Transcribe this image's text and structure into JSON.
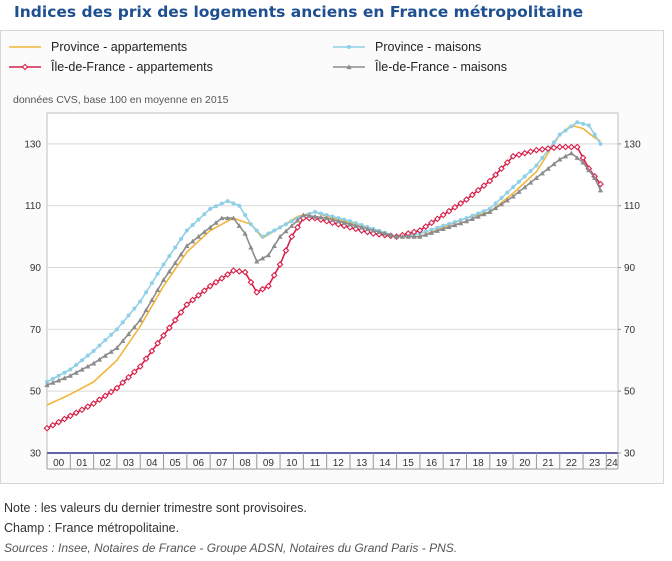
{
  "title": "Indices des prix des logements anciens en France métropolitaine",
  "notes": {
    "note": "Note : les valeurs du dernier trimestre sont provisoires.",
    "champ": "Champ : France métropolitaine.",
    "sources": "Sources : Insee, Notaires de France - Groupe ADSN, Notaires du Grand Paris - PNS."
  },
  "colors": {
    "province_apparts": "#f3b43a",
    "province_maisons": "#8fd0e8",
    "idf_apparts": "#d8204a",
    "idf_maisons": "#8c8c8c",
    "axis": "#2e3192",
    "grid": "#d9d9d9"
  },
  "chart_data": {
    "type": "line",
    "subtitle": "données CVS, base 100 en moyenne en 2015",
    "categories": [
      "00",
      "01",
      "02",
      "03",
      "04",
      "05",
      "06",
      "07",
      "08",
      "09",
      "10",
      "11",
      "12",
      "13",
      "14",
      "15",
      "16",
      "17",
      "18",
      "19",
      "20",
      "21",
      "22",
      "23",
      "24"
    ],
    "x_range": [
      2000,
      2024.5
    ],
    "ylim": [
      30,
      140
    ],
    "yticks": [
      30,
      50,
      70,
      90,
      110,
      130
    ],
    "grid": true,
    "legend_position": "top",
    "series": [
      {
        "name": "Province - appartements",
        "color_key": "province_apparts",
        "marker": "none",
        "x": [
          2000,
          2001,
          2002,
          2003,
          2004,
          2005,
          2006,
          2007,
          2008,
          2008.75,
          2009.25,
          2010,
          2010.75,
          2011.5,
          2012,
          2013,
          2014,
          2015,
          2016,
          2017,
          2018,
          2019,
          2020,
          2021,
          2022,
          2022.5,
          2023,
          2023.5,
          2023.75
        ],
        "y": [
          45.5,
          49,
          53,
          60,
          71,
          84,
          95,
          102,
          106,
          104,
          99.5,
          103,
          106.5,
          108,
          106.5,
          104.5,
          102.5,
          100,
          100,
          103,
          106,
          108,
          114,
          121,
          133,
          136,
          135,
          132,
          131
        ]
      },
      {
        "name": "Province - maisons",
        "color_key": "province_maisons",
        "marker": "circle",
        "x": [
          2000,
          2001,
          2002,
          2003,
          2004,
          2005,
          2006,
          2007,
          2007.75,
          2008.25,
          2008.75,
          2009.25,
          2010,
          2010.75,
          2011.5,
          2012,
          2013,
          2014,
          2015,
          2016,
          2017,
          2018,
          2019,
          2020,
          2021,
          2022,
          2022.75,
          2023.25,
          2023.75
        ],
        "y": [
          53,
          57,
          63,
          70,
          79,
          91,
          102,
          109,
          111.5,
          110,
          104,
          100,
          103,
          106,
          108,
          107,
          105,
          102.5,
          100,
          101,
          103.5,
          106,
          109,
          116,
          123,
          133,
          137,
          136,
          130
        ]
      },
      {
        "name": "Île-de-France - appartements",
        "color_key": "idf_apparts",
        "marker": "diamond",
        "x": [
          2000,
          2001,
          2002,
          2003,
          2004,
          2005,
          2006,
          2007,
          2008,
          2008.5,
          2009,
          2009.5,
          2010,
          2010.5,
          2011,
          2011.5,
          2012,
          2013,
          2014,
          2015,
          2016,
          2017,
          2018,
          2019,
          2020,
          2021,
          2022,
          2022.75,
          2023.25,
          2023.75
        ],
        "y": [
          38,
          42,
          46,
          51,
          58,
          68,
          78,
          84,
          89,
          88.5,
          82,
          84,
          91,
          100,
          106,
          106,
          105,
          103,
          101,
          100,
          102,
          107,
          112,
          118,
          126,
          128,
          129,
          129,
          122,
          117
        ]
      },
      {
        "name": "Île-de-France - maisons",
        "color_key": "idf_maisons",
        "marker": "triangle",
        "x": [
          2000,
          2001,
          2002,
          2003,
          2004,
          2005,
          2006,
          2007,
          2007.5,
          2008,
          2008.5,
          2009,
          2009.5,
          2010,
          2011,
          2012,
          2013,
          2014,
          2015,
          2016,
          2017,
          2018,
          2019,
          2020,
          2021,
          2022,
          2022.5,
          2023,
          2023.5,
          2023.75
        ],
        "y": [
          52,
          55,
          59,
          64,
          73,
          86,
          97,
          103,
          106,
          106,
          101,
          92,
          94,
          100,
          107,
          106,
          104,
          102,
          100,
          100,
          102.5,
          105,
          108,
          113,
          119,
          125,
          127,
          124,
          119,
          115
        ]
      }
    ]
  }
}
